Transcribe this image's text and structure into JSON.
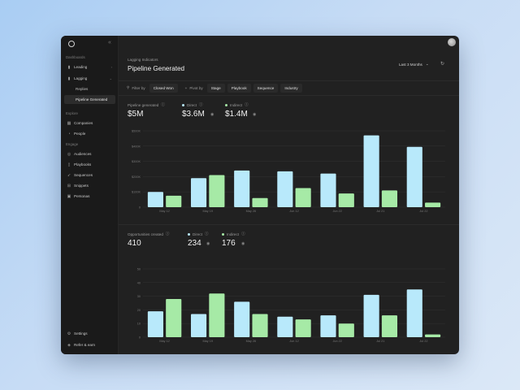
{
  "sidebar": {
    "section_dashboards": "Dashboards",
    "items_top": [
      {
        "label": "Leading",
        "icon": "chart-icon"
      },
      {
        "label": "Lagging",
        "icon": "chart-icon"
      }
    ],
    "sub_items": [
      {
        "label": "Replies",
        "active": false
      },
      {
        "label": "Pipeline Generated",
        "active": true
      }
    ],
    "section_explore": "Explore",
    "explore_items": [
      {
        "label": "Companies",
        "icon": "building-icon"
      },
      {
        "label": "People",
        "icon": "person-icon"
      }
    ],
    "section_engage": "Engage",
    "engage_items": [
      {
        "label": "Audiences",
        "icon": "target-icon"
      },
      {
        "label": "Playbooks",
        "icon": "book-icon"
      },
      {
        "label": "Sequences",
        "icon": "send-icon"
      },
      {
        "label": "Snippets",
        "icon": "snippet-icon"
      },
      {
        "label": "Personas",
        "icon": "persona-icon"
      }
    ],
    "footer_items": [
      {
        "label": "Settings",
        "icon": "gear-icon"
      },
      {
        "label": "Refer & earn",
        "icon": "gift-icon"
      }
    ]
  },
  "header": {
    "breadcrumb": "Lagging Indicators",
    "title": "Pipeline Generated",
    "date_range": "Last 3 Months"
  },
  "toolbar": {
    "filter_label": "Filter by",
    "filter_value": "Closed Won",
    "pivot_label": "Pivot by",
    "pivot_options": [
      "Stage",
      "Playbook",
      "Sequence",
      "Industry"
    ]
  },
  "colors": {
    "direct": "#b8e9fb",
    "indirect": "#a6eaa6"
  },
  "pipeline": {
    "label": "Pipeline generated",
    "total": "$5M",
    "direct_label": "Direct",
    "direct_value": "$3.6M",
    "indirect_label": "Indirect",
    "indirect_value": "$1.4M"
  },
  "opportunities": {
    "label": "Opportunities created",
    "total": "410",
    "direct_label": "Direct",
    "direct_value": "234",
    "indirect_label": "Indirect",
    "indirect_value": "176"
  },
  "chart_data": [
    {
      "type": "bar",
      "categories": [
        "May 12",
        "May 19",
        "May 26",
        "Jun 12",
        "Jun 22",
        "Jul 21",
        "Jul 22"
      ],
      "y_ticks": [
        "0",
        "$100K",
        "$200K",
        "$300K",
        "$400K",
        "$500K"
      ],
      "ylim": [
        0,
        500
      ],
      "series": [
        {
          "name": "Direct",
          "values": [
            100,
            190,
            240,
            235,
            220,
            470,
            395
          ]
        },
        {
          "name": "Indirect",
          "values": [
            75,
            210,
            60,
            125,
            90,
            110,
            30
          ]
        }
      ]
    },
    {
      "type": "bar",
      "categories": [
        "May 12",
        "May 19",
        "May 26",
        "Jun 12",
        "Jun 22",
        "Jul 21",
        "Jul 22"
      ],
      "y_ticks": [
        "0",
        "10",
        "20",
        "30",
        "40",
        "50"
      ],
      "ylim": [
        0,
        50
      ],
      "series": [
        {
          "name": "Direct",
          "values": [
            19,
            17,
            26,
            15,
            16,
            31,
            35
          ]
        },
        {
          "name": "Indirect",
          "values": [
            28,
            32,
            17,
            13,
            10,
            16,
            2
          ]
        }
      ]
    }
  ]
}
